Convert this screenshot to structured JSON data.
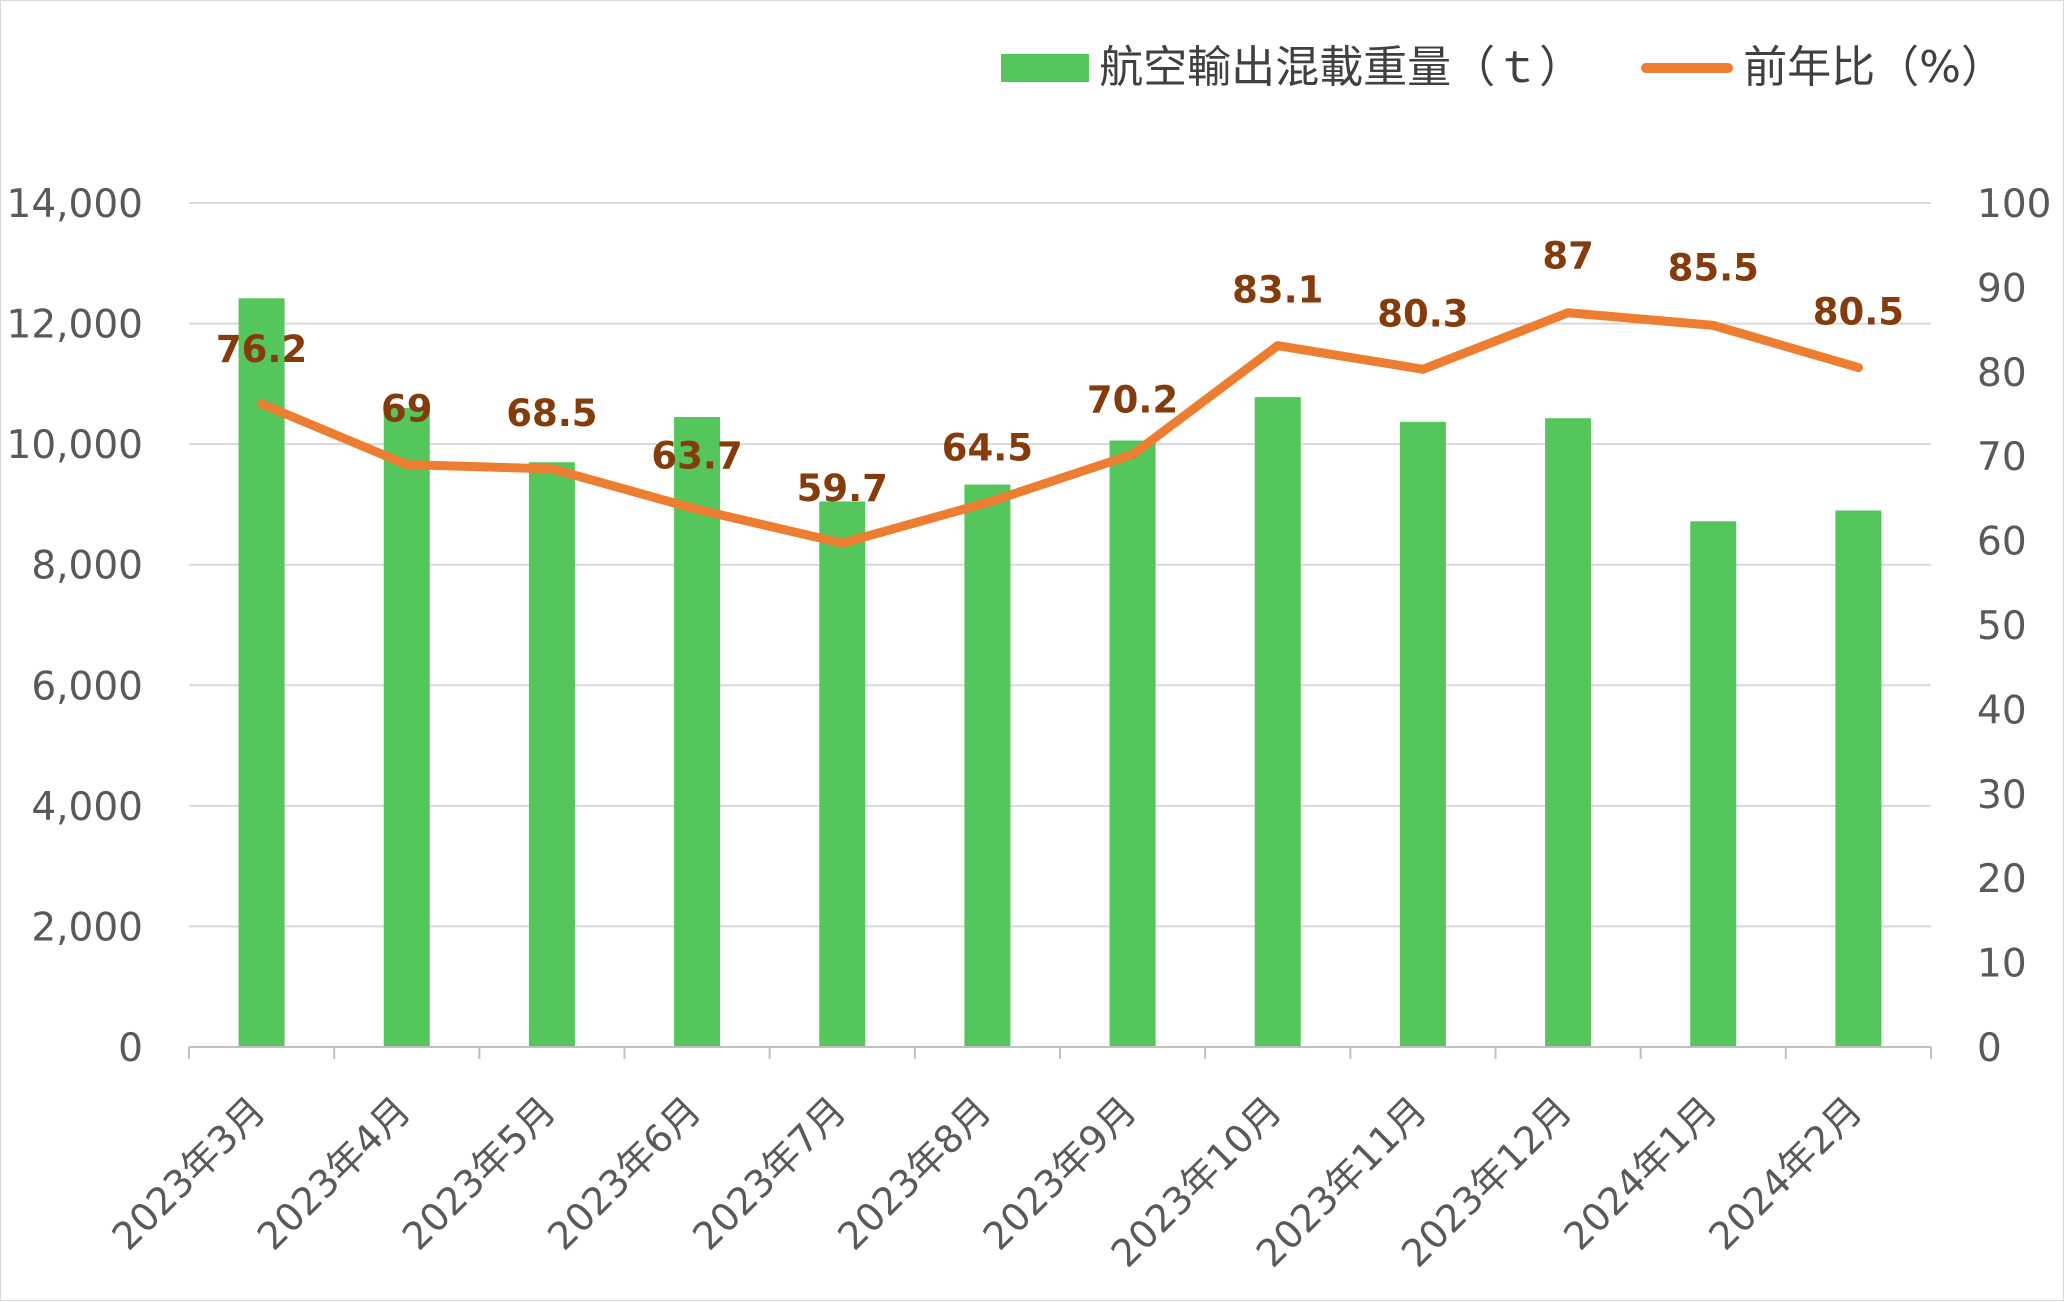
{
  "chart_data": {
    "type": "bar",
    "categories": [
      "2023年3月",
      "2023年4月",
      "2023年5月",
      "2023年6月",
      "2023年7月",
      "2023年8月",
      "2023年9月",
      "2023年10月",
      "2023年11月",
      "2023年12月",
      "2024年1月",
      "2024年2月"
    ],
    "series": [
      {
        "name": "航空輸出混載重量（ｔ）",
        "type": "bar",
        "axis": "left",
        "values": [
          12420,
          10600,
          9700,
          10450,
          9050,
          9330,
          10060,
          10780,
          10370,
          10430,
          8720,
          8900
        ],
        "color": "#55c65b"
      },
      {
        "name": "前年比（%）",
        "type": "line",
        "axis": "right",
        "values": [
          76.2,
          69,
          68.5,
          63.7,
          59.7,
          64.5,
          70.2,
          83.1,
          80.3,
          87,
          85.5,
          80.5
        ],
        "data_labels": [
          "76.2",
          "69",
          "68.5",
          "63.7",
          "59.7",
          "64.5",
          "70.2",
          "83.1",
          "80.3",
          "87",
          "85.5",
          "80.5"
        ],
        "color": "#ed7d31",
        "label_color": "#843c0c"
      }
    ],
    "left_axis": {
      "ylim": [
        0,
        14000
      ],
      "ticks": [
        0,
        2000,
        4000,
        6000,
        8000,
        10000,
        12000,
        14000
      ],
      "tick_labels": [
        "0",
        "2,000",
        "4,000",
        "6,000",
        "8,000",
        "10,000",
        "12,000",
        "14,000"
      ]
    },
    "right_axis": {
      "ylim": [
        0,
        100
      ],
      "ticks": [
        0,
        10,
        20,
        30,
        40,
        50,
        60,
        70,
        80,
        90,
        100
      ],
      "tick_labels": [
        "0",
        "10",
        "20",
        "30",
        "40",
        "50",
        "60",
        "70",
        "80",
        "90",
        "100"
      ]
    },
    "title": "",
    "xlabel": "",
    "ylabel": "",
    "grid": true,
    "legend_position": "top-right",
    "colors": {
      "grid": "#d9d9d9",
      "axis": "#bfbfbf",
      "tick_text": "#595959",
      "legend_text": "#404040"
    }
  }
}
